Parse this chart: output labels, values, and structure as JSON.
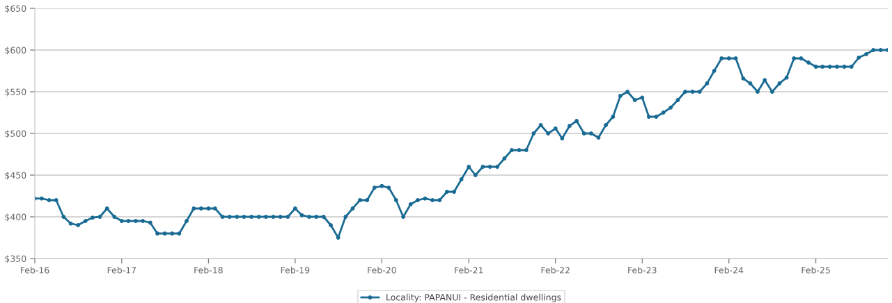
{
  "chart_data": {
    "type": "line",
    "x": [
      "2016-02",
      "2016-03",
      "2016-04",
      "2016-05",
      "2016-06",
      "2016-07",
      "2016-08",
      "2016-09",
      "2016-10",
      "2016-11",
      "2016-12",
      "2017-01",
      "2017-02",
      "2017-03",
      "2017-04",
      "2017-05",
      "2017-06",
      "2017-07",
      "2017-08",
      "2017-09",
      "2017-10",
      "2017-11",
      "2017-12",
      "2018-01",
      "2018-02",
      "2018-03",
      "2018-04",
      "2018-05",
      "2018-06",
      "2018-07",
      "2018-08",
      "2018-09",
      "2018-10",
      "2018-11",
      "2018-12",
      "2019-01",
      "2019-02",
      "2019-03",
      "2019-04",
      "2019-05",
      "2019-06",
      "2019-07",
      "2019-08",
      "2019-09",
      "2019-10",
      "2019-11",
      "2019-12",
      "2020-01",
      "2020-02",
      "2020-03",
      "2020-04",
      "2020-05",
      "2020-06",
      "2020-07",
      "2020-08",
      "2020-09",
      "2020-10",
      "2020-11",
      "2020-12",
      "2021-01",
      "2021-02",
      "2021-03",
      "2021-04",
      "2021-05",
      "2021-06",
      "2021-07",
      "2021-08",
      "2021-09",
      "2021-10",
      "2021-11",
      "2021-12",
      "2022-01",
      "2022-02",
      "2022-03",
      "2022-04",
      "2022-05",
      "2022-06",
      "2022-07",
      "2022-08",
      "2022-09",
      "2022-10",
      "2022-11",
      "2022-12",
      "2023-01",
      "2023-02",
      "2023-03",
      "2023-04",
      "2023-05",
      "2023-06",
      "2023-07",
      "2023-08",
      "2023-09",
      "2023-10",
      "2023-11",
      "2023-12",
      "2024-01",
      "2024-02",
      "2024-03",
      "2024-04",
      "2024-05",
      "2024-06",
      "2024-07",
      "2024-08",
      "2024-09",
      "2024-10",
      "2024-11",
      "2024-12",
      "2025-01",
      "2025-02",
      "2025-03",
      "2025-04",
      "2025-05",
      "2025-06",
      "2025-07",
      "2025-08",
      "2025-09",
      "2025-10",
      "2025-11",
      "2025-12"
    ],
    "series": [
      {
        "name": "Locality: PAPANUI - Residential dwellings",
        "color": "#1a6b94",
        "values": [
          422,
          422,
          420,
          420,
          400,
          392,
          390,
          395,
          399,
          400,
          410,
          400,
          395,
          395,
          395,
          395,
          393,
          380,
          380,
          380,
          380,
          395,
          410,
          410,
          410,
          410,
          400,
          400,
          400,
          400,
          400,
          400,
          400,
          400,
          400,
          400,
          410,
          402,
          400,
          400,
          400,
          390,
          375,
          400,
          410,
          420,
          420,
          435,
          437,
          435,
          420,
          400,
          415,
          420,
          422,
          420,
          420,
          430,
          430,
          445,
          460,
          450,
          460,
          460,
          460,
          470,
          480,
          480,
          480,
          500,
          510,
          500,
          506,
          494,
          509,
          515,
          500,
          500,
          495,
          510,
          520,
          545,
          550,
          540,
          543,
          520,
          520,
          525,
          531,
          540,
          550,
          550,
          550,
          560,
          575,
          590,
          590,
          590,
          566,
          560,
          550,
          564,
          550,
          560,
          567,
          590,
          590,
          585,
          580,
          580,
          580,
          580,
          580,
          580,
          591,
          595,
          600,
          600,
          600
        ]
      }
    ],
    "xlim": [
      "2016-02",
      "2025-12"
    ],
    "xticks": [
      {
        "value": "2016-02",
        "label": "Feb-16"
      },
      {
        "value": "2017-02",
        "label": "Feb-17"
      },
      {
        "value": "2018-02",
        "label": "Feb-18"
      },
      {
        "value": "2019-02",
        "label": "Feb-19"
      },
      {
        "value": "2020-02",
        "label": "Feb-20"
      },
      {
        "value": "2021-02",
        "label": "Feb-21"
      },
      {
        "value": "2022-02",
        "label": "Feb-22"
      },
      {
        "value": "2023-02",
        "label": "Feb-23"
      },
      {
        "value": "2024-02",
        "label": "Feb-24"
      },
      {
        "value": "2025-02",
        "label": "Feb-25"
      }
    ],
    "ylim": [
      350,
      650
    ],
    "yticks": [
      {
        "value": 350,
        "label": "$350"
      },
      {
        "value": 400,
        "label": "$400"
      },
      {
        "value": 450,
        "label": "$450"
      },
      {
        "value": 500,
        "label": "$500"
      },
      {
        "value": 550,
        "label": "$550"
      },
      {
        "value": 600,
        "label": "$600"
      },
      {
        "value": 650,
        "label": "$650"
      }
    ],
    "grid": "y",
    "legend": "bottom",
    "marker": "circle",
    "line_style": "solid"
  }
}
